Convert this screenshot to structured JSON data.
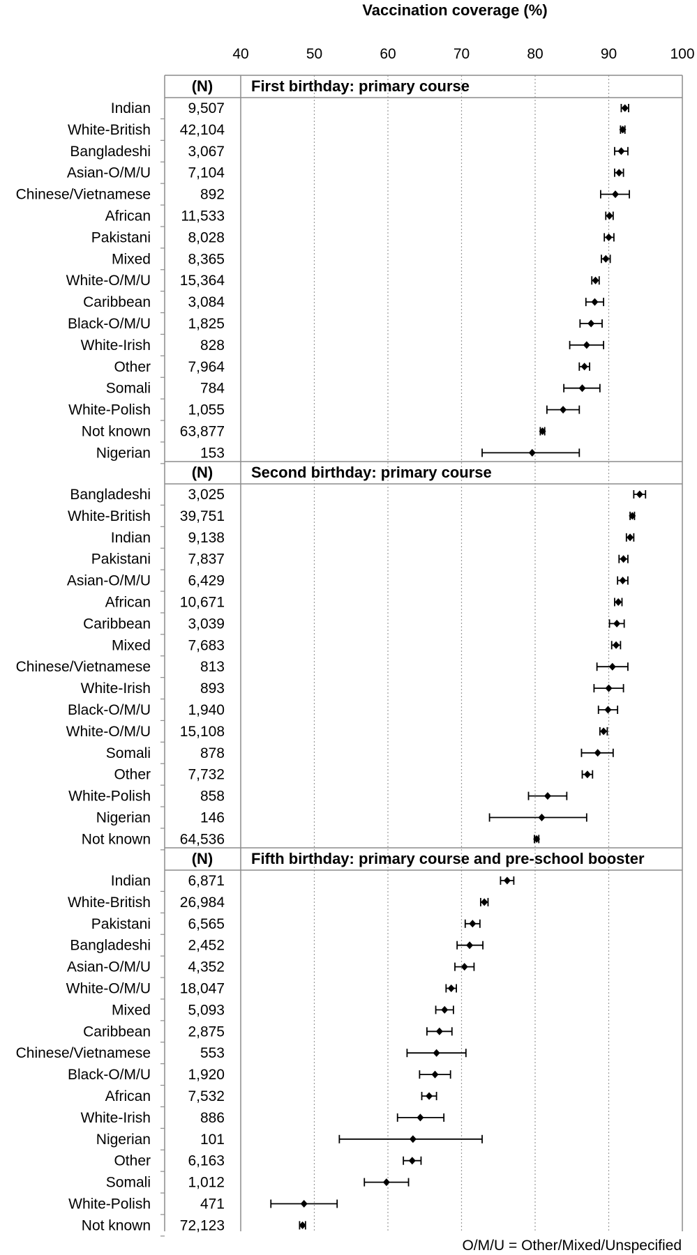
{
  "chart_data": {
    "type": "scatter",
    "title": "Vaccination coverage (%)",
    "x_ticks": [
      40,
      50,
      60,
      70,
      80,
      90,
      100
    ],
    "xlim": [
      40,
      100
    ],
    "grid": "vertical dotted",
    "n_header": "(N)",
    "footnote": "O/M/U = Other/Mixed/Unspecified",
    "panels": [
      {
        "title": "First birthday: primary course",
        "rows": [
          {
            "group": "Indian",
            "n": "9,507",
            "value": 92.2,
            "low": 91.7,
            "high": 92.7
          },
          {
            "group": "White-British",
            "n": "42,104",
            "value": 91.9,
            "low": 91.6,
            "high": 92.2
          },
          {
            "group": "Bangladeshi",
            "n": "3,067",
            "value": 91.7,
            "low": 90.8,
            "high": 92.6
          },
          {
            "group": "Asian-O/M/U",
            "n": "7,104",
            "value": 91.4,
            "low": 90.8,
            "high": 92.0
          },
          {
            "group": "Chinese/Vietnamese",
            "n": "892",
            "value": 90.9,
            "low": 88.9,
            "high": 92.8
          },
          {
            "group": "African",
            "n": "11,533",
            "value": 90.1,
            "low": 89.6,
            "high": 90.6
          },
          {
            "group": "Pakistani",
            "n": "8,028",
            "value": 90.0,
            "low": 89.4,
            "high": 90.7
          },
          {
            "group": "Mixed",
            "n": "8,365",
            "value": 89.6,
            "low": 89.0,
            "high": 90.2
          },
          {
            "group": "White-O/M/U",
            "n": "15,364",
            "value": 88.2,
            "low": 87.7,
            "high": 88.7
          },
          {
            "group": "Caribbean",
            "n": "3,084",
            "value": 88.1,
            "low": 86.9,
            "high": 89.3
          },
          {
            "group": "Black-O/M/U",
            "n": "1,825",
            "value": 87.6,
            "low": 86.1,
            "high": 89.1
          },
          {
            "group": "White-Irish",
            "n": "828",
            "value": 87.0,
            "low": 84.7,
            "high": 89.3
          },
          {
            "group": "Other",
            "n": "7,964",
            "value": 86.7,
            "low": 86.0,
            "high": 87.4
          },
          {
            "group": "Somali",
            "n": "784",
            "value": 86.4,
            "low": 83.9,
            "high": 88.8
          },
          {
            "group": "White-Polish",
            "n": "1,055",
            "value": 83.8,
            "low": 81.6,
            "high": 86.0
          },
          {
            "group": "Not known",
            "n": "63,877",
            "value": 81.0,
            "low": 80.7,
            "high": 81.3
          },
          {
            "group": "Nigerian",
            "n": "153",
            "value": 79.6,
            "low": 72.8,
            "high": 86.0
          }
        ]
      },
      {
        "title": "Second birthday: primary course",
        "rows": [
          {
            "group": "Bangladeshi",
            "n": "3,025",
            "value": 94.2,
            "low": 93.4,
            "high": 95.0
          },
          {
            "group": "White-British",
            "n": "39,751",
            "value": 93.2,
            "low": 92.9,
            "high": 93.5
          },
          {
            "group": "Indian",
            "n": "9,138",
            "value": 92.9,
            "low": 92.4,
            "high": 93.4
          },
          {
            "group": "Pakistani",
            "n": "7,837",
            "value": 92.0,
            "low": 91.4,
            "high": 92.6
          },
          {
            "group": "Asian-O/M/U",
            "n": "6,429",
            "value": 91.9,
            "low": 91.2,
            "high": 92.6
          },
          {
            "group": "African",
            "n": "10,671",
            "value": 91.3,
            "low": 90.8,
            "high": 91.8
          },
          {
            "group": "Caribbean",
            "n": "3,039",
            "value": 91.1,
            "low": 90.1,
            "high": 92.1
          },
          {
            "group": "Mixed",
            "n": "7,683",
            "value": 91.0,
            "low": 90.4,
            "high": 91.6
          },
          {
            "group": "Chinese/Vietnamese",
            "n": "813",
            "value": 90.5,
            "low": 88.4,
            "high": 92.6
          },
          {
            "group": "White-Irish",
            "n": "893",
            "value": 90.0,
            "low": 88.0,
            "high": 92.0
          },
          {
            "group": "Black-O/M/U",
            "n": "1,940",
            "value": 89.9,
            "low": 88.6,
            "high": 91.2
          },
          {
            "group": "White-O/M/U",
            "n": "15,108",
            "value": 89.3,
            "low": 88.8,
            "high": 89.8
          },
          {
            "group": "Somali",
            "n": "878",
            "value": 88.5,
            "low": 86.3,
            "high": 90.6
          },
          {
            "group": "Other",
            "n": "7,732",
            "value": 87.1,
            "low": 86.4,
            "high": 87.8
          },
          {
            "group": "White-Polish",
            "n": "858",
            "value": 81.7,
            "low": 79.1,
            "high": 84.3
          },
          {
            "group": "Nigerian",
            "n": "146",
            "value": 80.9,
            "low": 73.8,
            "high": 87.0
          },
          {
            "group": "Not known",
            "n": "64,536",
            "value": 80.2,
            "low": 79.9,
            "high": 80.5
          }
        ]
      },
      {
        "title": "Fifth birthday: primary course and pre-school booster",
        "rows": [
          {
            "group": "Indian",
            "n": "6,871",
            "value": 76.2,
            "low": 75.3,
            "high": 77.1
          },
          {
            "group": "White-British",
            "n": "26,984",
            "value": 73.1,
            "low": 72.6,
            "high": 73.6
          },
          {
            "group": "Pakistani",
            "n": "6,565",
            "value": 71.5,
            "low": 70.5,
            "high": 72.5
          },
          {
            "group": "Bangladeshi",
            "n": "2,452",
            "value": 71.1,
            "low": 69.4,
            "high": 72.9
          },
          {
            "group": "Asian-O/M/U",
            "n": "4,352",
            "value": 70.4,
            "low": 69.1,
            "high": 71.7
          },
          {
            "group": "White-O/M/U",
            "n": "18,047",
            "value": 68.6,
            "low": 67.9,
            "high": 69.3
          },
          {
            "group": "Mixed",
            "n": "5,093",
            "value": 67.7,
            "low": 66.5,
            "high": 68.9
          },
          {
            "group": "Caribbean",
            "n": "2,875",
            "value": 67.0,
            "low": 65.3,
            "high": 68.7
          },
          {
            "group": "Chinese/Vietnamese",
            "n": "553",
            "value": 66.6,
            "low": 62.6,
            "high": 70.6
          },
          {
            "group": "Black-O/M/U",
            "n": "1,920",
            "value": 66.4,
            "low": 64.3,
            "high": 68.5
          },
          {
            "group": "African",
            "n": "7,532",
            "value": 65.6,
            "low": 64.6,
            "high": 66.6
          },
          {
            "group": "White-Irish",
            "n": "886",
            "value": 64.4,
            "low": 61.3,
            "high": 67.6
          },
          {
            "group": "Nigerian",
            "n": "101",
            "value": 63.4,
            "low": 53.4,
            "high": 72.8
          },
          {
            "group": "Other",
            "n": "6,163",
            "value": 63.3,
            "low": 62.1,
            "high": 64.5
          },
          {
            "group": "Somali",
            "n": "1,012",
            "value": 59.8,
            "low": 56.8,
            "high": 62.8
          },
          {
            "group": "White-Polish",
            "n": "471",
            "value": 48.6,
            "low": 44.1,
            "high": 53.1
          },
          {
            "group": "Not known",
            "n": "72,123",
            "value": 48.4,
            "low": 48.0,
            "high": 48.8
          }
        ]
      }
    ]
  }
}
